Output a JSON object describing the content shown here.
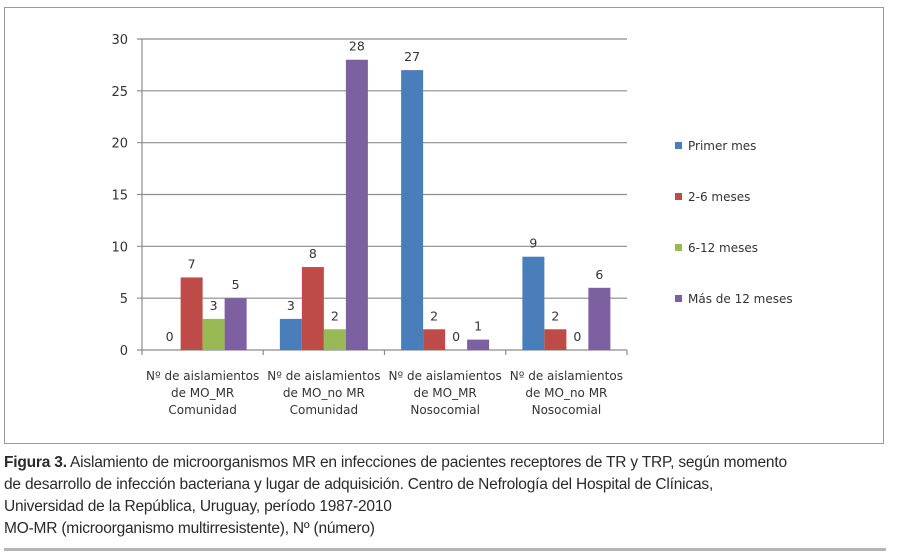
{
  "chart_data": {
    "type": "bar",
    "title": "",
    "xlabel": "",
    "ylabel": "",
    "ylim": [
      0,
      30
    ],
    "yticks": [
      0,
      5,
      10,
      15,
      20,
      25,
      30
    ],
    "grid": true,
    "legend_position": "right",
    "categories": [
      [
        "Nº de aislamientos",
        "de MO_MR",
        "Comunidad"
      ],
      [
        "Nº de aislamientos",
        "de MO_no MR",
        "Comunidad"
      ],
      [
        "Nº de aislamientos",
        "de MO_MR",
        "Nosocomial"
      ],
      [
        "Nº de aislamientos",
        "de MO_no MR",
        "Nosocomial"
      ]
    ],
    "series": [
      {
        "name": "Primer mes",
        "color": "#4a7ebb",
        "values": [
          0,
          3,
          27,
          9
        ]
      },
      {
        "name": "2-6 meses",
        "color": "#be4b48",
        "values": [
          7,
          8,
          2,
          2
        ]
      },
      {
        "name": "6-12 meses",
        "color": "#98b954",
        "values": [
          3,
          2,
          0,
          0
        ]
      },
      {
        "name": "Más de 12 meses",
        "color": "#7d60a0",
        "values": [
          5,
          28,
          1,
          6
        ]
      }
    ]
  },
  "caption": {
    "label": "Figura 3.",
    "line1": " Aislamiento de microorganismos MR en infecciones de pacientes receptores de TR y TRP, según momento",
    "line2": "de desarrollo de infección bacteriana y lugar de adquisición. Centro de Nefrología del Hospital de Clínicas,",
    "line3": "Universidad de la República, Uruguay, período 1987-2010",
    "line4": "MO-MR (microorganismo multirresistente), Nº (número)"
  }
}
